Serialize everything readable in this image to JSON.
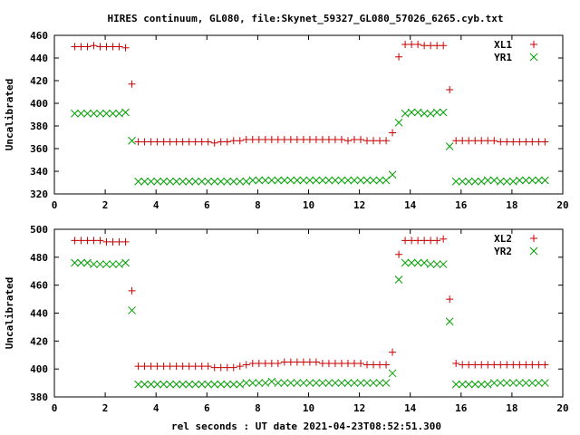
{
  "title": "HIRES continuum, GL080, file:Skynet_59327_GL080_57026_6265.cyb.txt",
  "xlabel": "rel seconds : UT date 2021-04-23T08:52:51.300",
  "colors": {
    "series_1": "#cc0000",
    "series_2": "#00a000",
    "axes": "#000000"
  },
  "chart_data": [
    {
      "type": "scatter",
      "ylabel": "Uncalibrated",
      "xlim": [
        0,
        20
      ],
      "ylim": [
        320,
        460
      ],
      "xticks": [
        0,
        2,
        4,
        6,
        8,
        10,
        12,
        14,
        16,
        18,
        20
      ],
      "yticks": [
        320,
        340,
        360,
        380,
        400,
        420,
        440,
        460
      ],
      "legend_position": "top-right",
      "grid": false,
      "series": [
        {
          "name": "XL1",
          "marker": "plus",
          "color": "#cc0000",
          "x": [
            0.8,
            1.05,
            1.3,
            1.55,
            1.8,
            2.05,
            2.3,
            2.55,
            2.8,
            3.05,
            3.3,
            3.55,
            3.8,
            4.05,
            4.3,
            4.55,
            4.8,
            5.05,
            5.3,
            5.55,
            5.8,
            6.05,
            6.3,
            6.55,
            6.8,
            7.05,
            7.3,
            7.55,
            7.8,
            8.05,
            8.3,
            8.55,
            8.8,
            9.05,
            9.3,
            9.55,
            9.8,
            10.05,
            10.3,
            10.55,
            10.8,
            11.05,
            11.3,
            11.55,
            11.8,
            12.05,
            12.3,
            12.55,
            12.8,
            13.05,
            13.3,
            13.55,
            13.8,
            14.05,
            14.3,
            14.55,
            14.8,
            15.05,
            15.3,
            15.55,
            15.8,
            16.05,
            16.3,
            16.55,
            16.8,
            17.05,
            17.3,
            17.55,
            17.8,
            18.05,
            18.3,
            18.55,
            18.8,
            19.05,
            19.3
          ],
          "y": [
            450,
            450,
            450,
            451,
            450,
            450,
            450,
            450,
            449,
            417,
            366,
            366,
            366,
            366,
            366,
            366,
            366,
            366,
            366,
            366,
            366,
            366,
            365,
            366,
            366,
            367,
            367,
            368,
            368,
            368,
            368,
            368,
            368,
            368,
            368,
            368,
            368,
            368,
            368,
            368,
            368,
            368,
            368,
            367,
            368,
            368,
            367,
            367,
            367,
            367,
            374,
            441,
            452,
            452,
            452,
            451,
            451,
            451,
            451,
            412,
            367,
            367,
            367,
            367,
            367,
            367,
            367,
            366,
            366,
            366,
            366,
            366,
            366,
            366,
            366
          ]
        },
        {
          "name": "YR1",
          "marker": "cross",
          "color": "#00a000",
          "x": [
            0.8,
            1.05,
            1.3,
            1.55,
            1.8,
            2.05,
            2.3,
            2.55,
            2.8,
            3.05,
            3.3,
            3.55,
            3.8,
            4.05,
            4.3,
            4.55,
            4.8,
            5.05,
            5.3,
            5.55,
            5.8,
            6.05,
            6.3,
            6.55,
            6.8,
            7.05,
            7.3,
            7.55,
            7.8,
            8.05,
            8.3,
            8.55,
            8.8,
            9.05,
            9.3,
            9.55,
            9.8,
            10.05,
            10.3,
            10.55,
            10.8,
            11.05,
            11.3,
            11.55,
            11.8,
            12.05,
            12.3,
            12.55,
            12.8,
            13.05,
            13.3,
            13.55,
            13.8,
            14.05,
            14.3,
            14.55,
            14.8,
            15.05,
            15.3,
            15.55,
            15.8,
            16.05,
            16.3,
            16.55,
            16.8,
            17.05,
            17.3,
            17.55,
            17.8,
            18.05,
            18.3,
            18.55,
            18.8,
            19.05,
            19.3
          ],
          "y": [
            391,
            391,
            391,
            391,
            391,
            391,
            391,
            391,
            392,
            367,
            331,
            331,
            331,
            331,
            331,
            331,
            331,
            331,
            331,
            331,
            331,
            331,
            331,
            331,
            331,
            331,
            331,
            331,
            332,
            332,
            332,
            332,
            332,
            332,
            332,
            332,
            332,
            332,
            332,
            332,
            332,
            332,
            332,
            332,
            332,
            332,
            332,
            332,
            332,
            332,
            337,
            383,
            391,
            392,
            392,
            391,
            391,
            392,
            392,
            362,
            331,
            331,
            331,
            331,
            331,
            332,
            332,
            331,
            331,
            331,
            332,
            332,
            332,
            332,
            332
          ]
        }
      ]
    },
    {
      "type": "scatter",
      "ylabel": "Uncalibrated",
      "xlim": [
        0,
        20
      ],
      "ylim": [
        380,
        500
      ],
      "xticks": [
        0,
        2,
        4,
        6,
        8,
        10,
        12,
        14,
        16,
        18,
        20
      ],
      "yticks": [
        380,
        400,
        420,
        440,
        460,
        480,
        500
      ],
      "legend_position": "top-right",
      "grid": false,
      "series": [
        {
          "name": "XL2",
          "marker": "plus",
          "color": "#cc0000",
          "x": [
            0.8,
            1.05,
            1.3,
            1.55,
            1.8,
            2.05,
            2.3,
            2.55,
            2.8,
            3.05,
            3.3,
            3.55,
            3.8,
            4.05,
            4.3,
            4.55,
            4.8,
            5.05,
            5.3,
            5.55,
            5.8,
            6.05,
            6.3,
            6.55,
            6.8,
            7.05,
            7.3,
            7.55,
            7.8,
            8.05,
            8.3,
            8.55,
            8.8,
            9.05,
            9.3,
            9.55,
            9.8,
            10.05,
            10.3,
            10.55,
            10.8,
            11.05,
            11.3,
            11.55,
            11.8,
            12.05,
            12.3,
            12.55,
            12.8,
            13.05,
            13.3,
            13.55,
            13.8,
            14.05,
            14.3,
            14.55,
            14.8,
            15.05,
            15.3,
            15.55,
            15.8,
            16.05,
            16.3,
            16.55,
            16.8,
            17.05,
            17.3,
            17.55,
            17.8,
            18.05,
            18.3,
            18.55,
            18.8,
            19.05,
            19.3
          ],
          "y": [
            492,
            492,
            492,
            492,
            492,
            491,
            491,
            491,
            491,
            456,
            402,
            402,
            402,
            402,
            402,
            402,
            402,
            402,
            402,
            402,
            402,
            402,
            401,
            401,
            401,
            401,
            402,
            403,
            404,
            404,
            404,
            404,
            404,
            405,
            405,
            405,
            405,
            405,
            405,
            404,
            404,
            404,
            404,
            404,
            404,
            404,
            403,
            403,
            403,
            403,
            412,
            482,
            492,
            492,
            492,
            492,
            492,
            492,
            493,
            450,
            404,
            403,
            403,
            403,
            403,
            403,
            403,
            403,
            403,
            403,
            403,
            403,
            403,
            403,
            403
          ]
        },
        {
          "name": "YR2",
          "marker": "cross",
          "color": "#00a000",
          "x": [
            0.8,
            1.05,
            1.3,
            1.55,
            1.8,
            2.05,
            2.3,
            2.55,
            2.8,
            3.05,
            3.3,
            3.55,
            3.8,
            4.05,
            4.3,
            4.55,
            4.8,
            5.05,
            5.3,
            5.55,
            5.8,
            6.05,
            6.3,
            6.55,
            6.8,
            7.05,
            7.3,
            7.55,
            7.8,
            8.05,
            8.3,
            8.55,
            8.8,
            9.05,
            9.3,
            9.55,
            9.8,
            10.05,
            10.3,
            10.55,
            10.8,
            11.05,
            11.3,
            11.55,
            11.8,
            12.05,
            12.3,
            12.55,
            12.8,
            13.05,
            13.3,
            13.55,
            13.8,
            14.05,
            14.3,
            14.55,
            14.8,
            15.05,
            15.3,
            15.55,
            15.8,
            16.05,
            16.3,
            16.55,
            16.8,
            17.05,
            17.3,
            17.55,
            17.8,
            18.05,
            18.3,
            18.55,
            18.8,
            19.05,
            19.3
          ],
          "y": [
            476,
            476,
            476,
            475,
            475,
            475,
            475,
            475,
            476,
            442,
            389,
            389,
            389,
            389,
            389,
            389,
            389,
            389,
            389,
            389,
            389,
            389,
            389,
            389,
            389,
            389,
            389,
            390,
            390,
            390,
            390,
            391,
            390,
            390,
            390,
            390,
            390,
            390,
            390,
            390,
            390,
            390,
            390,
            390,
            390,
            390,
            390,
            390,
            390,
            390,
            397,
            464,
            476,
            476,
            476,
            476,
            475,
            475,
            475,
            434,
            389,
            389,
            389,
            389,
            389,
            389,
            390,
            390,
            390,
            390,
            390,
            390,
            390,
            390,
            390
          ]
        }
      ]
    }
  ]
}
